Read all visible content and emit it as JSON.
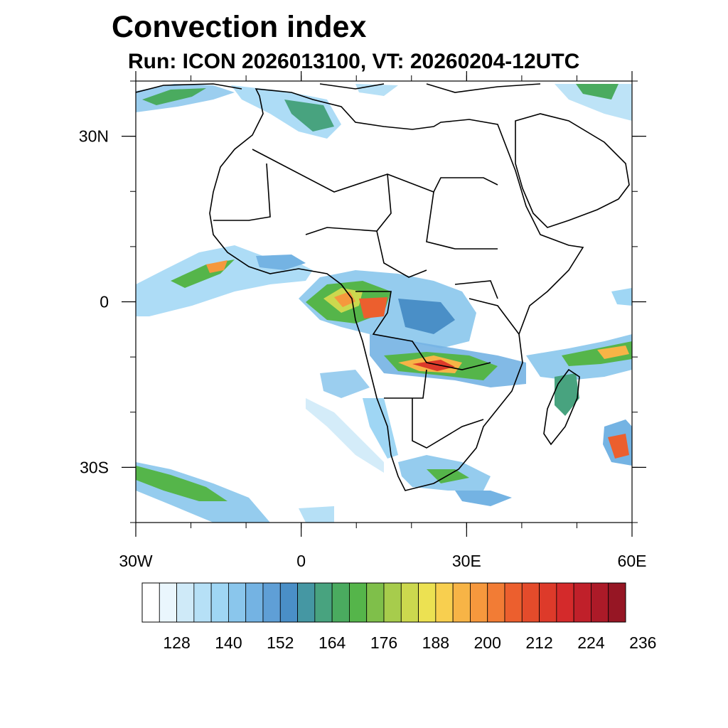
{
  "title": "Convection index",
  "subtitle": "Run: ICON 2026013100,  VT: 20260204-12UTC",
  "axes": {
    "lon_ticks": [
      {
        "lon": -30,
        "label": "30W"
      },
      {
        "lon": 0,
        "label": "0"
      },
      {
        "lon": 30,
        "label": "30E"
      },
      {
        "lon": 60,
        "label": "60E"
      }
    ],
    "lat_ticks": [
      {
        "lat": 30,
        "label": "30N"
      },
      {
        "lat": 0,
        "label": "0"
      },
      {
        "lat": -30,
        "label": "30S"
      }
    ],
    "lon_range": [
      -30,
      60
    ],
    "lat_range": [
      -40,
      40
    ]
  },
  "colorbar": {
    "colors": [
      "#ffffff",
      "#eaf6fd",
      "#cfeaf8",
      "#b6e0f6",
      "#9fd6f4",
      "#8ac6ec",
      "#74b3e3",
      "#5f9fd6",
      "#4a8fc7",
      "#4597a3",
      "#48a37f",
      "#4aab5f",
      "#55b54a",
      "#7fbf4a",
      "#a7cc4c",
      "#ccd84e",
      "#ece152",
      "#f8cf4f",
      "#f7b446",
      "#f6983d",
      "#f27c35",
      "#ec5f2e",
      "#e44b2b",
      "#dd3a2a",
      "#d42a2b",
      "#c0202a",
      "#ac1a28",
      "#961624"
    ],
    "labels": [
      "128",
      "140",
      "152",
      "164",
      "176",
      "188",
      "200",
      "212",
      "224",
      "236"
    ]
  }
}
